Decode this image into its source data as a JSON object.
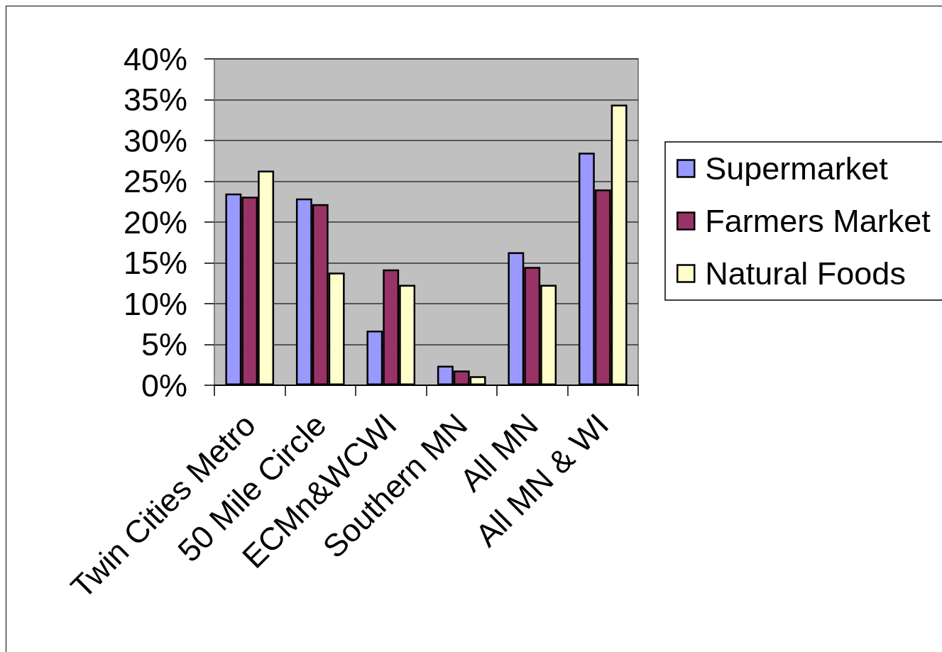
{
  "chart_data": {
    "type": "bar",
    "categories": [
      "Twin Cities Metro",
      "50 Mile Circle",
      "ECMn&WCWI",
      "Southern MN",
      "All MN",
      "All MN & WI"
    ],
    "series": [
      {
        "name": "Supermarket",
        "color": "#9999ff",
        "values": [
          23.5,
          22.9,
          6.7,
          2.4,
          16.3,
          28.5
        ]
      },
      {
        "name": "Farmers Market",
        "color": "#993366",
        "values": [
          23.1,
          22.2,
          14.2,
          1.8,
          14.5,
          24.0
        ]
      },
      {
        "name": "Natural Foods",
        "color": "#ffffcc",
        "values": [
          26.3,
          13.8,
          12.3,
          1.1,
          12.3,
          34.4
        ]
      }
    ],
    "ylim": [
      0,
      40
    ],
    "yticks": [
      {
        "value": 0,
        "label": "0%"
      },
      {
        "value": 5,
        "label": "5%"
      },
      {
        "value": 10,
        "label": "10%"
      },
      {
        "value": 15,
        "label": "15%"
      },
      {
        "value": 20,
        "label": "20%"
      },
      {
        "value": 25,
        "label": "25%"
      },
      {
        "value": 30,
        "label": "30%"
      },
      {
        "value": 35,
        "label": "35%"
      },
      {
        "value": 40,
        "label": "40%"
      }
    ],
    "grid": "y",
    "legend": "right"
  }
}
